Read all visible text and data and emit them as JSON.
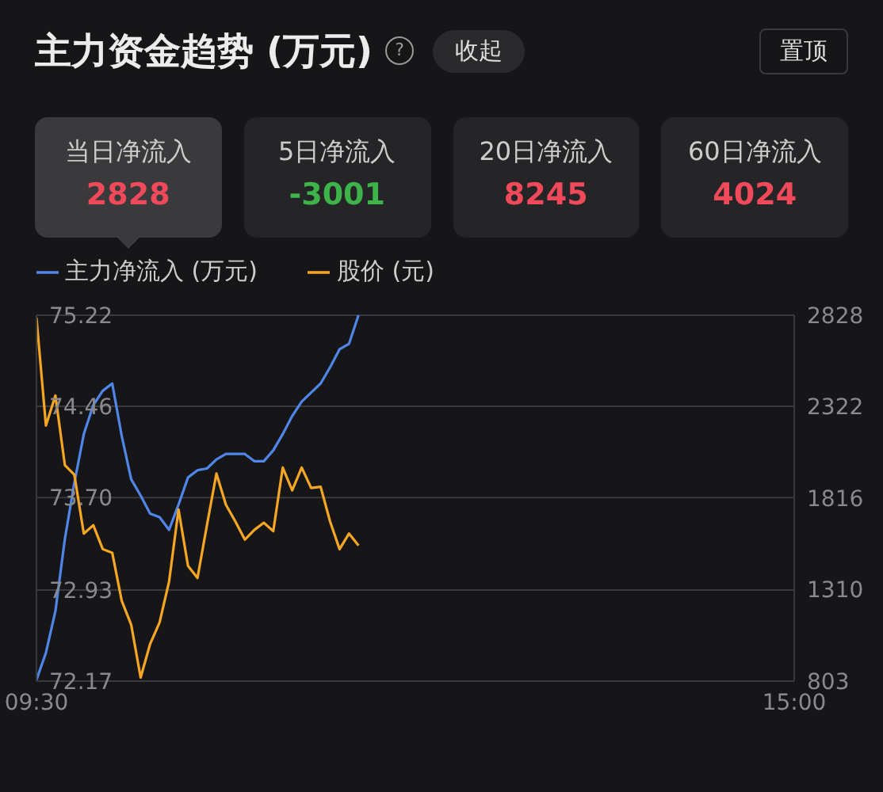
{
  "chart_data": [
    {
      "type": "other",
      "title": "主力资金趋势 (万元)",
      "annotations": [
        "?",
        "收起",
        "置顶"
      ],
      "categories": [
        "当日净流入",
        "5日净流入",
        "20日净流入",
        "60日净流入"
      ],
      "values": [
        2828,
        -3001,
        8245,
        4024
      ],
      "colors": [
        "#3a3a3d",
        "#252528",
        "#252528",
        "#252528"
      ],
      "data_labels": true
    },
    {
      "type": "line",
      "legend": "top left",
      "grid": "y",
      "categories": [
        "09:30",
        null,
        null,
        null,
        null,
        null,
        null,
        null,
        null,
        null,
        null,
        null,
        null,
        null,
        null,
        null,
        null,
        null,
        null,
        null,
        null,
        null,
        null,
        null,
        null,
        null,
        null,
        null,
        null,
        null,
        null,
        null,
        null,
        null,
        null,
        null,
        null,
        null,
        null,
        null,
        null,
        null,
        null,
        null,
        null,
        null,
        null,
        null,
        null,
        null,
        null,
        null,
        null,
        null,
        null,
        null,
        null,
        null,
        null,
        null,
        null,
        null,
        null,
        null,
        null,
        null,
        null,
        null,
        null,
        null,
        null,
        null,
        null,
        null,
        null,
        null,
        null,
        null,
        null,
        null,
        "15:00"
      ],
      "ylim": [
        72.17,
        75.22
      ],
      "yticks": [
        72.17,
        72.93,
        {
          "value": 73.7,
          "label": "73.70"
        },
        74.46,
        75.22
      ],
      "y2lim": [
        803,
        2828
      ],
      "y2ticks": [
        803,
        1310,
        1816,
        2322,
        2828
      ],
      "series": [
        {
          "name": "主力净流入 (万元)",
          "color": "#4f86e8",
          "axis": "y2",
          "values": [
            810,
            960,
            1190,
            1590,
            1900,
            2170,
            2330,
            2410,
            2450,
            2160,
            1920,
            1830,
            1730,
            1710,
            1640,
            1780,
            1930,
            1970,
            1980,
            2030,
            2060,
            2060,
            2060,
            2020,
            2020,
            2080,
            2170,
            2270,
            2350,
            2400,
            2450,
            2540,
            2640,
            2670,
            2828,
            null,
            null,
            null,
            null,
            null,
            null,
            null,
            null,
            null,
            null,
            null,
            null,
            null,
            null,
            null,
            null,
            null,
            null,
            null,
            null,
            null,
            null,
            null,
            null,
            null,
            null,
            null,
            null,
            null,
            null,
            null,
            null,
            null,
            null,
            null,
            null,
            null,
            null,
            null,
            null,
            null,
            null,
            null,
            null,
            null,
            null
          ]
        },
        {
          "name": "股价 (元)",
          "color": "#f5a623",
          "axis": "y",
          "values": [
            75.2,
            74.3,
            74.55,
            73.97,
            73.89,
            73.4,
            73.47,
            73.27,
            73.24,
            72.84,
            72.64,
            72.2,
            72.48,
            72.66,
            73.0,
            73.6,
            73.13,
            73.03,
            73.47,
            73.9,
            73.64,
            73.5,
            73.35,
            73.43,
            73.49,
            73.42,
            73.95,
            73.76,
            73.95,
            73.78,
            73.79,
            73.5,
            73.27,
            73.4,
            73.3,
            null,
            null,
            null,
            null,
            null,
            null,
            null,
            null,
            null,
            null,
            null,
            null,
            null,
            null,
            null,
            null,
            null,
            null,
            null,
            null,
            null,
            null,
            null,
            null,
            null,
            null,
            null,
            null,
            null,
            null,
            null,
            null,
            null,
            null,
            null,
            null,
            null,
            null,
            null,
            null,
            null,
            null,
            null,
            null,
            null,
            null
          ]
        }
      ]
    }
  ]
}
